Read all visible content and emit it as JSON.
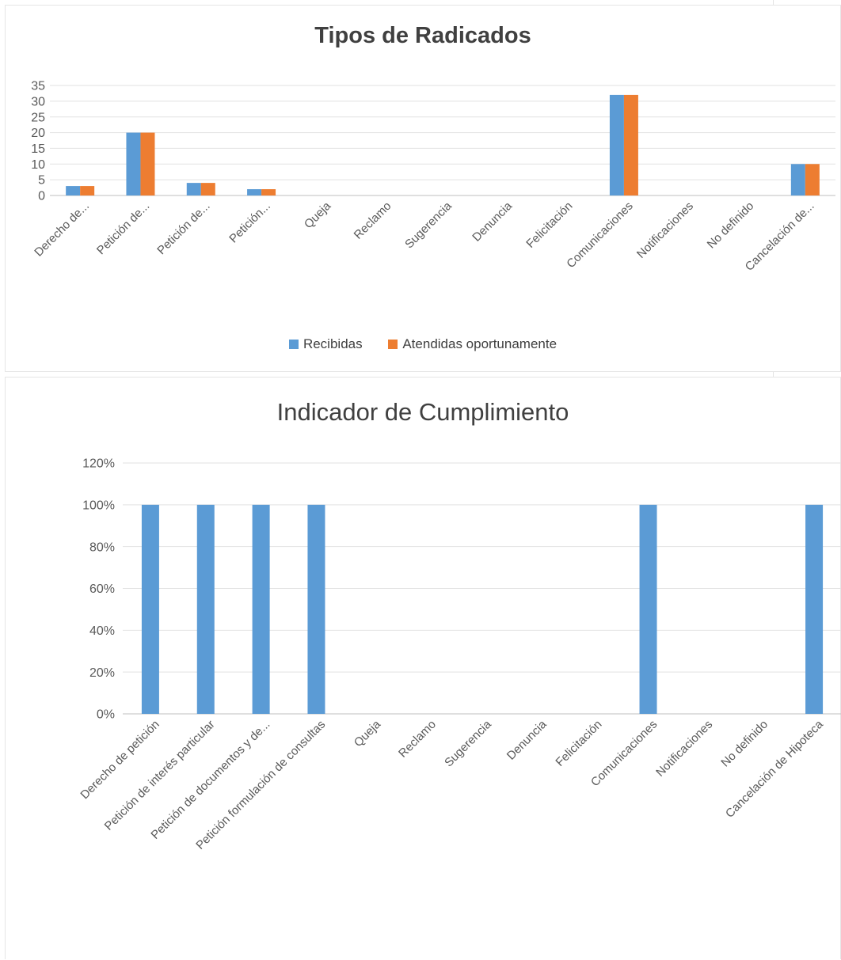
{
  "chart_data": [
    {
      "type": "bar",
      "title": "Tipos de Radicados",
      "categories": [
        "Derecho de...",
        "Petición de...",
        "Petición de...",
        "Petición...",
        "Queja",
        "Reclamo",
        "Sugerencia",
        "Denuncia",
        "Felicitación",
        "Comunicaciones",
        "Notificaciones",
        "No definido",
        "Cancelación de..."
      ],
      "series": [
        {
          "name": "Recibidas",
          "values": [
            3,
            20,
            4,
            2,
            0,
            0,
            0,
            0,
            0,
            32,
            0,
            0,
            10
          ],
          "color": "#5b9bd5"
        },
        {
          "name": "Atendidas oportunamente",
          "values": [
            3,
            20,
            4,
            2,
            0,
            0,
            0,
            0,
            0,
            32,
            0,
            0,
            10
          ],
          "color": "#ed7d31"
        }
      ],
      "yticks": [
        "0",
        "5",
        "10",
        "15",
        "20",
        "25",
        "30",
        "35"
      ],
      "ylim": [
        0,
        35
      ],
      "grid": true,
      "legend": "bottom"
    },
    {
      "type": "bar",
      "title": "Indicador de Cumplimiento",
      "categories": [
        "Derecho de petición",
        "Petición de interés particular",
        "Petición de documentos y de...",
        "Petición formulación de consultas",
        "Queja",
        "Reclamo",
        "Sugerencia",
        "Denuncia",
        "Felicitación",
        "Comunicaciones",
        "Notificaciones",
        "No definido",
        "Cancelación de Hipoteca"
      ],
      "series": [
        {
          "values": [
            100,
            100,
            100,
            100,
            0,
            0,
            0,
            0,
            0,
            100,
            0,
            0,
            100
          ],
          "color": "#5b9bd5"
        }
      ],
      "yticks": [
        "0%",
        "20%",
        "40%",
        "60%",
        "80%",
        "100%",
        "120%"
      ],
      "ylim": [
        0,
        120
      ],
      "grid": true,
      "legend": "none"
    }
  ]
}
